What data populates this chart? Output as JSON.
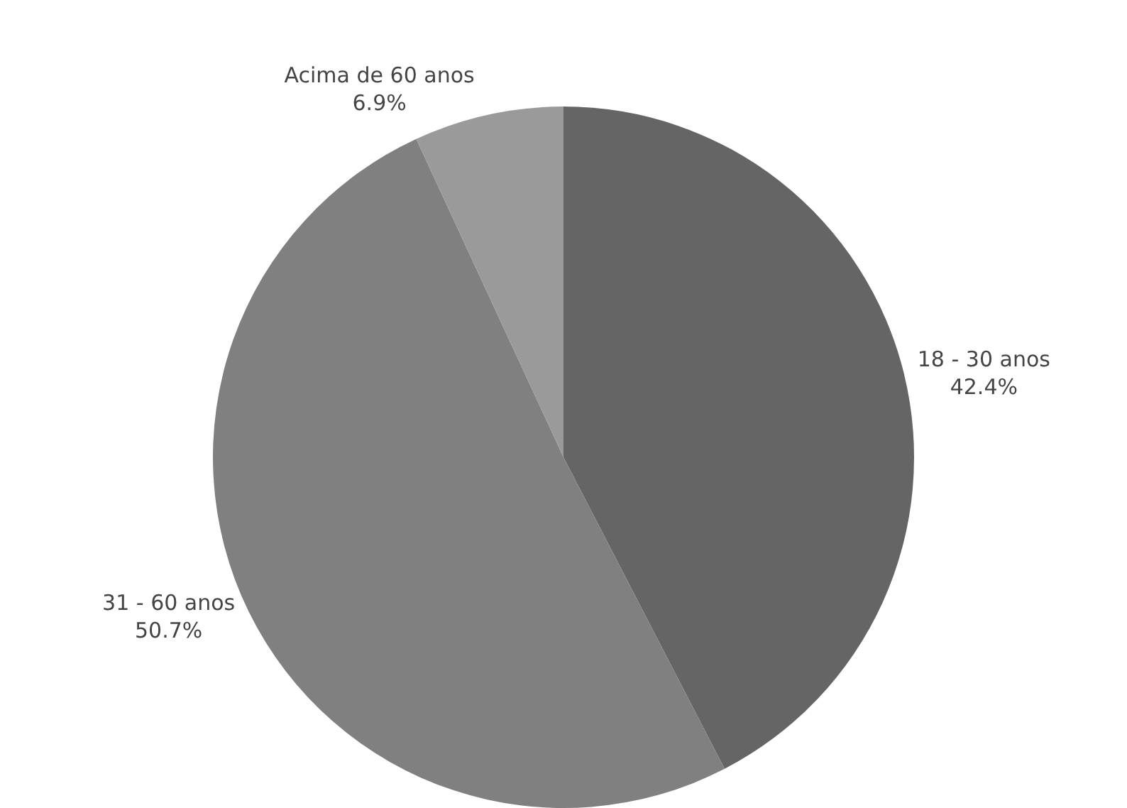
{
  "chart_data": {
    "type": "pie",
    "categories": [
      "18 - 30 anos",
      "31 - 60 anos",
      "Acima de 60 anos"
    ],
    "values": [
      42.4,
      50.7,
      6.9
    ],
    "value_labels": [
      "42.4%",
      "50.7%",
      "6.9%"
    ],
    "colors": [
      "#656565",
      "#808080",
      "#9a9a9a"
    ],
    "legend": false
  }
}
